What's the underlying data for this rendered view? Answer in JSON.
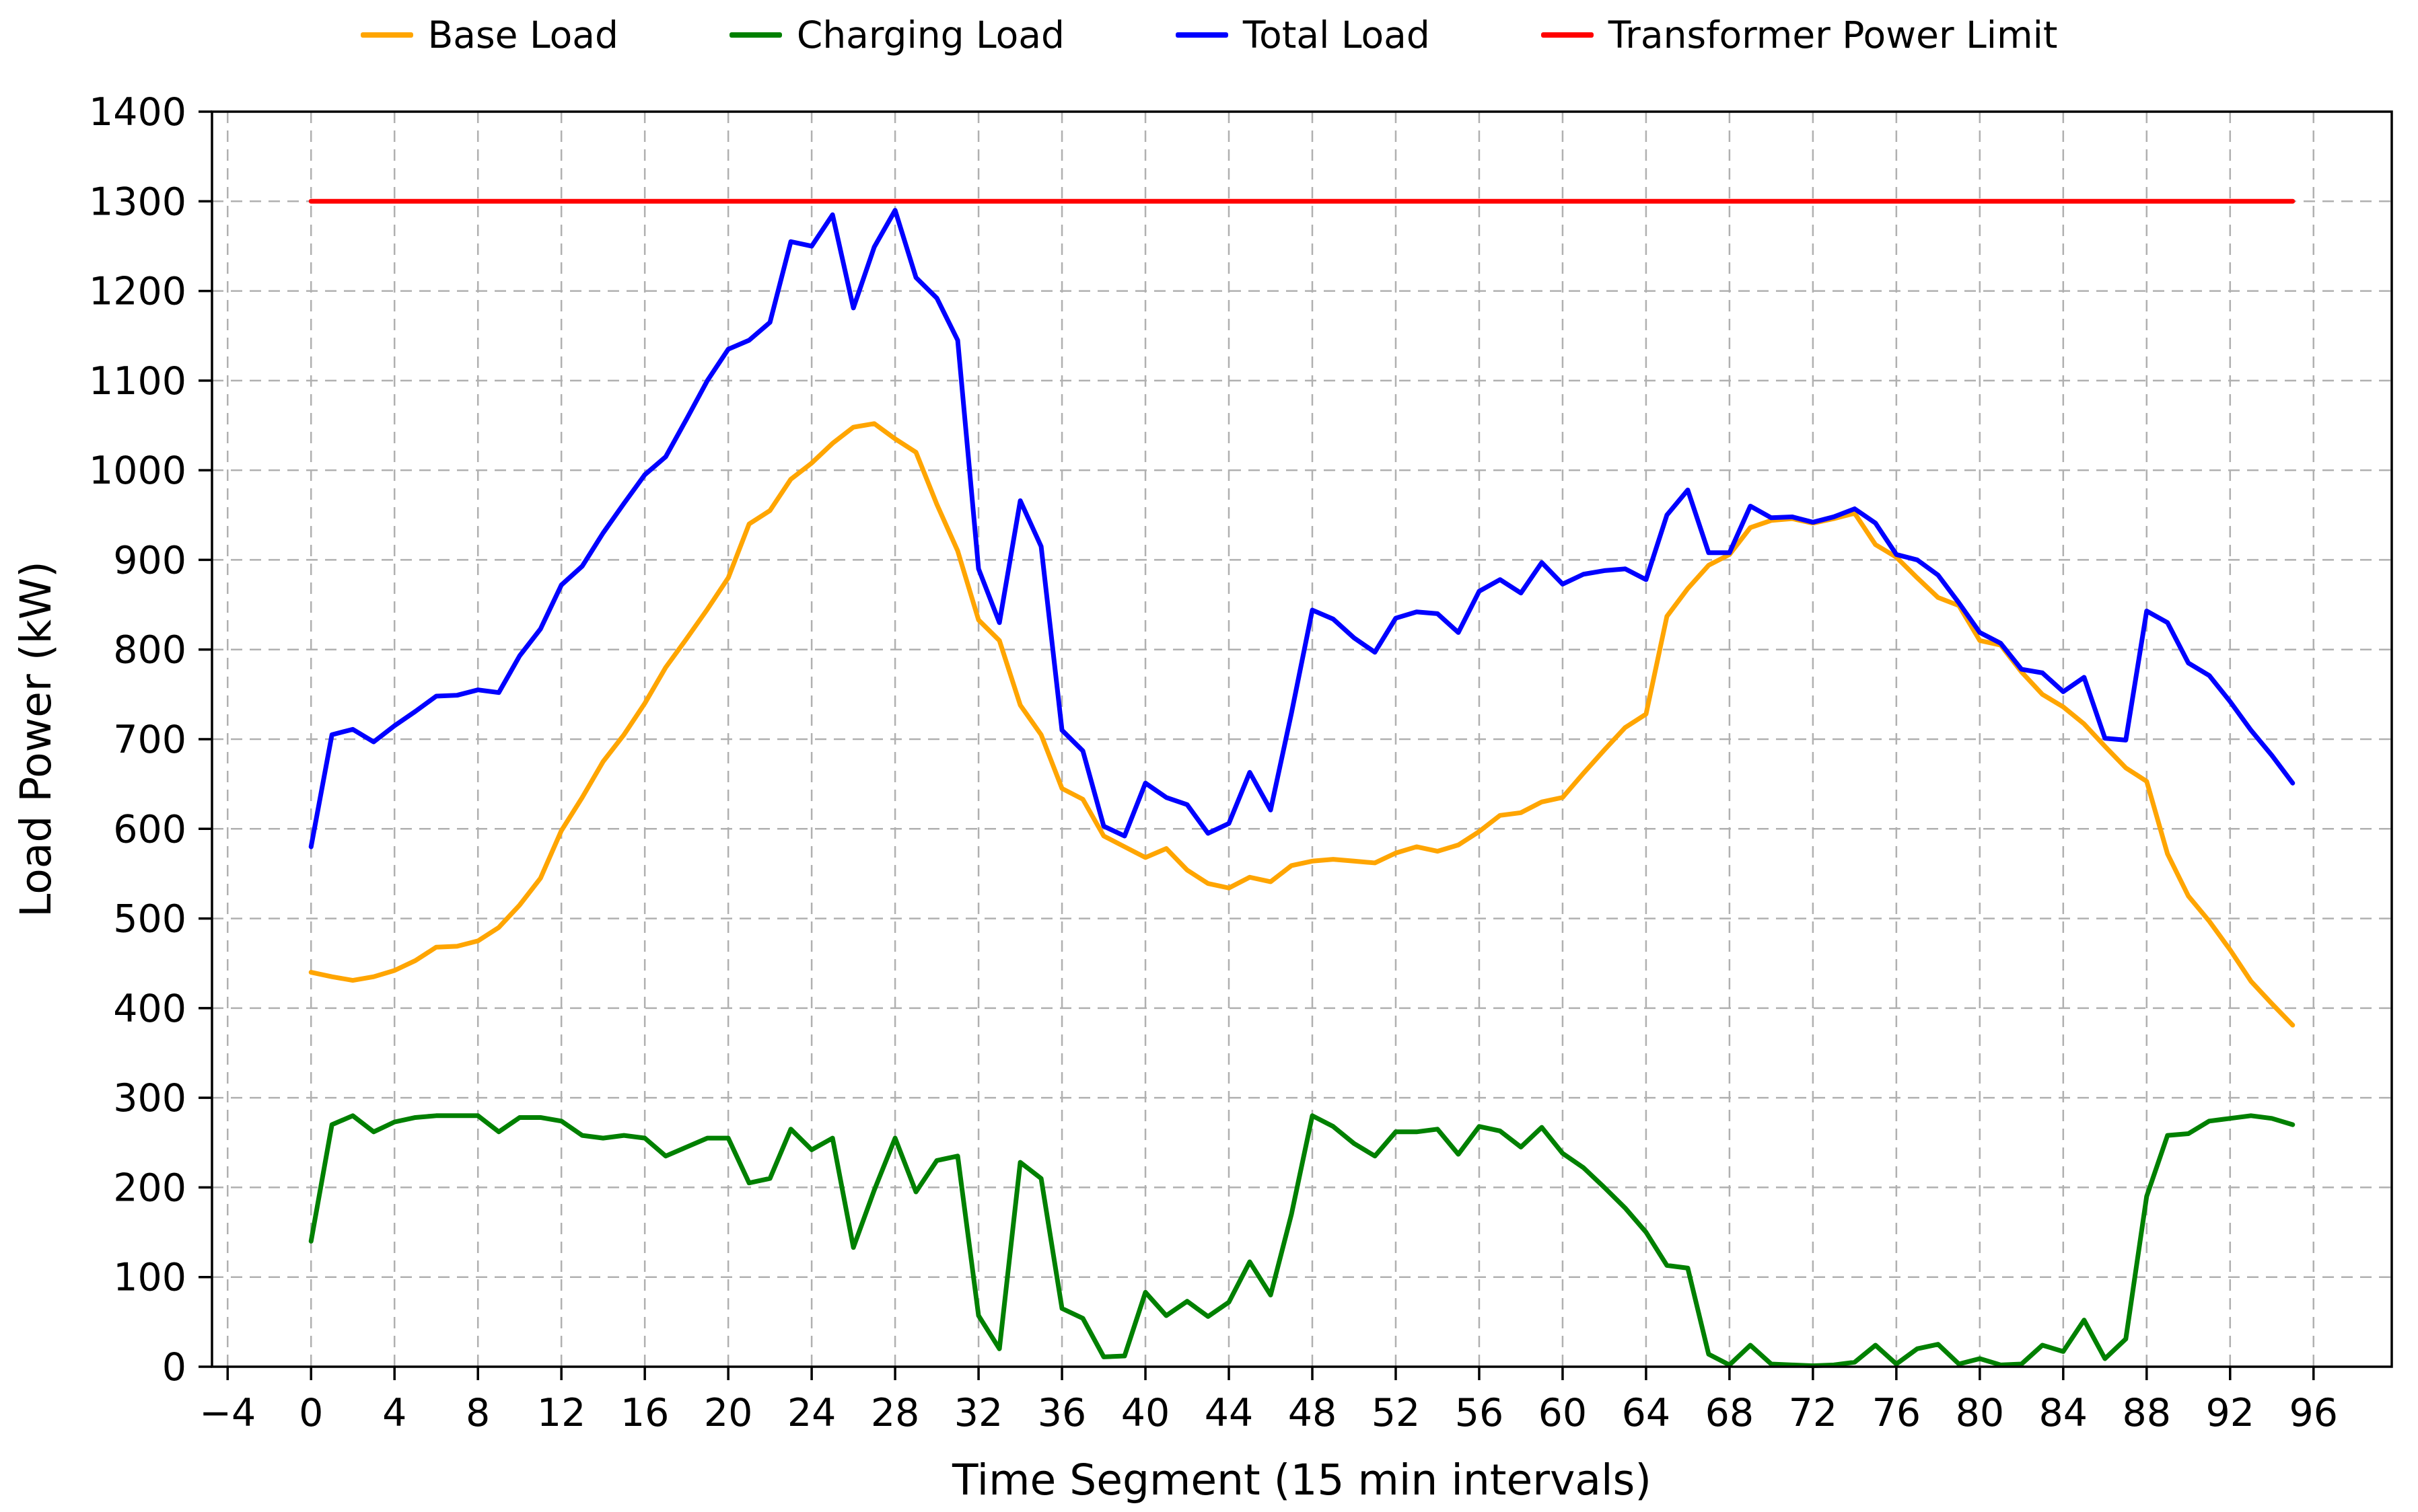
{
  "chart_data": {
    "type": "line",
    "title": "",
    "xlabel": "Time Segment (15 min intervals)",
    "ylabel": "Load Power (kW)",
    "grid": true,
    "legend_position": "top",
    "xlim": [
      -4.75,
      99.75
    ],
    "ylim": [
      0,
      1400
    ],
    "xticks": [
      -4,
      0,
      4,
      8,
      12,
      16,
      20,
      24,
      28,
      32,
      36,
      40,
      44,
      48,
      52,
      56,
      60,
      64,
      68,
      72,
      76,
      80,
      84,
      88,
      92,
      96
    ],
    "yticks": [
      0,
      100,
      200,
      300,
      400,
      500,
      600,
      700,
      800,
      900,
      1000,
      1100,
      1200,
      1300,
      1400
    ],
    "x": [
      0,
      1,
      2,
      3,
      4,
      5,
      6,
      7,
      8,
      9,
      10,
      11,
      12,
      13,
      14,
      15,
      16,
      17,
      18,
      19,
      20,
      21,
      22,
      23,
      24,
      25,
      26,
      27,
      28,
      29,
      30,
      31,
      32,
      33,
      34,
      35,
      36,
      37,
      38,
      39,
      40,
      41,
      42,
      43,
      44,
      45,
      46,
      47,
      48,
      49,
      50,
      51,
      52,
      53,
      54,
      55,
      56,
      57,
      58,
      59,
      60,
      61,
      62,
      63,
      64,
      65,
      66,
      67,
      68,
      69,
      70,
      71,
      72,
      73,
      74,
      75,
      76,
      77,
      78,
      79,
      80,
      81,
      82,
      83,
      84,
      85,
      86,
      87,
      88,
      89,
      90,
      91,
      92,
      93,
      94,
      95
    ],
    "series": [
      {
        "name": "Base Load",
        "color": "#FFA500",
        "values": [
          440,
          435,
          431,
          435,
          442,
          453,
          468,
          469,
          475,
          490,
          515,
          545,
          598,
          635,
          675,
          705,
          740,
          780,
          812,
          845,
          880,
          940,
          955,
          990,
          1008,
          1030,
          1048,
          1052,
          1035,
          1020,
          962,
          910,
          833,
          810,
          738,
          705,
          645,
          633,
          592,
          580,
          568,
          578,
          554,
          539,
          534,
          546,
          541,
          559,
          564,
          566,
          564,
          562,
          573,
          580,
          575,
          582,
          597,
          615,
          618,
          630,
          635,
          662,
          688,
          713,
          728,
          837,
          868,
          894,
          906,
          936,
          944,
          946,
          941,
          946,
          952,
          917,
          903,
          880,
          858,
          849,
          810,
          805,
          775,
          750,
          736,
          717,
          692,
          668,
          653,
          572,
          525,
          497,
          465,
          430,
          405,
          381
        ]
      },
      {
        "name": "Charging Load",
        "color": "#008000",
        "values": [
          140,
          270,
          280,
          262,
          273,
          278,
          280,
          280,
          280,
          262,
          278,
          278,
          274,
          258,
          255,
          258,
          255,
          235,
          245,
          255,
          255,
          205,
          210,
          265,
          242,
          255,
          133,
          197,
          255,
          195,
          230,
          235,
          57,
          20,
          228,
          210,
          65,
          54,
          11,
          12,
          83,
          57,
          73,
          56,
          72,
          117,
          80,
          170,
          280,
          268,
          249,
          235,
          262,
          262,
          265,
          237,
          268,
          263,
          245,
          267,
          238,
          222,
          200,
          177,
          150,
          113,
          110,
          14,
          2,
          24,
          3,
          2,
          1,
          2,
          5,
          24,
          3,
          20,
          25,
          3,
          9,
          2,
          3,
          24,
          17,
          52,
          9,
          31,
          190,
          258,
          260,
          274,
          277,
          280,
          277,
          270
        ]
      },
      {
        "name": "Total Load",
        "color": "#0000FF",
        "values": [
          580,
          705,
          711,
          697,
          715,
          731,
          748,
          749,
          755,
          752,
          793,
          823,
          872,
          893,
          930,
          963,
          995,
          1015,
          1057,
          1100,
          1135,
          1145,
          1165,
          1255,
          1250,
          1285,
          1181,
          1249,
          1290,
          1215,
          1192,
          1145,
          890,
          830,
          966,
          915,
          710,
          687,
          603,
          592,
          651,
          635,
          627,
          595,
          606,
          663,
          621,
          729,
          844,
          834,
          813,
          797,
          835,
          842,
          840,
          819,
          865,
          878,
          863,
          897,
          873,
          884,
          888,
          890,
          878,
          950,
          978,
          908,
          908,
          960,
          947,
          948,
          942,
          948,
          957,
          941,
          906,
          900,
          883,
          852,
          819,
          807,
          778,
          774,
          753,
          769,
          701,
          699,
          843,
          830,
          785,
          771,
          742,
          710,
          682,
          651
        ]
      },
      {
        "name": "Transformer Power Limit",
        "color": "#FF0000",
        "constant": 1300
      }
    ]
  },
  "legend": {
    "items": [
      {
        "label": "Base Load",
        "color": "#FFA500"
      },
      {
        "label": "Charging Load",
        "color": "#008000"
      },
      {
        "label": "Total Load",
        "color": "#0000FF"
      },
      {
        "label": "Transformer Power Limit",
        "color": "#FF0000"
      }
    ]
  },
  "style": {
    "grid_color": "#b0b0b0",
    "spine_color": "#000000",
    "background": "#ffffff"
  }
}
